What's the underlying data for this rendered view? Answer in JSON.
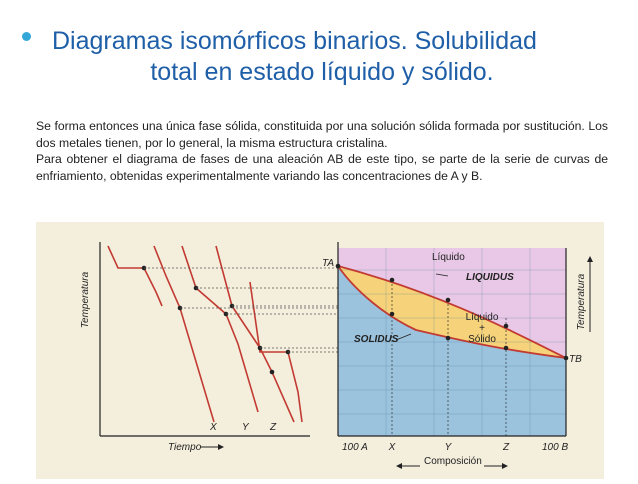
{
  "title": {
    "line1": "Diagramas isomórficos binarios. Solubilidad",
    "line2": "total en estado líquido y sólido.",
    "bullet_color": "#33a7d8",
    "color": "#1f5fa8"
  },
  "body": {
    "paragraph1": "Se forma entonces una única fase sólida, constituida por una solución sólida formada por sustitución. Los dos metales tienen, por lo general, la misma estructura cristalina.",
    "paragraph2": "Para obtener el diagrama de fases de una aleación AB de este tipo, se parte de la serie de curvas de enfriamiento, obtenidas experimentalmente variando las concentraciones de A y B."
  },
  "figure": {
    "cooling": {
      "y_axis_label": "Temperatura",
      "x_axis_label": "Tiempo",
      "curve_labels": [
        "X",
        "Y",
        "Z"
      ]
    },
    "phase": {
      "y_axis_label": "Temperatura",
      "x_axis_label": "Composición",
      "ta_label": "TA",
      "tb_label": "TB",
      "liquid_label": "Líquido",
      "liquidus_label": "LIQUIDUS",
      "solidus_label": "SOLIDUS",
      "two_phase_label_1": "Líquido",
      "two_phase_label_2": "+",
      "two_phase_label_3": "Sólido",
      "x_ticks": [
        "100 A",
        "X",
        "Y",
        "Z",
        "100 B"
      ]
    },
    "colors": {
      "liquid_region": "#e8c8e6",
      "two_phase_region": "#f6d37a",
      "solid_region": "#9cc3dd",
      "curve": "#c23b32"
    }
  }
}
